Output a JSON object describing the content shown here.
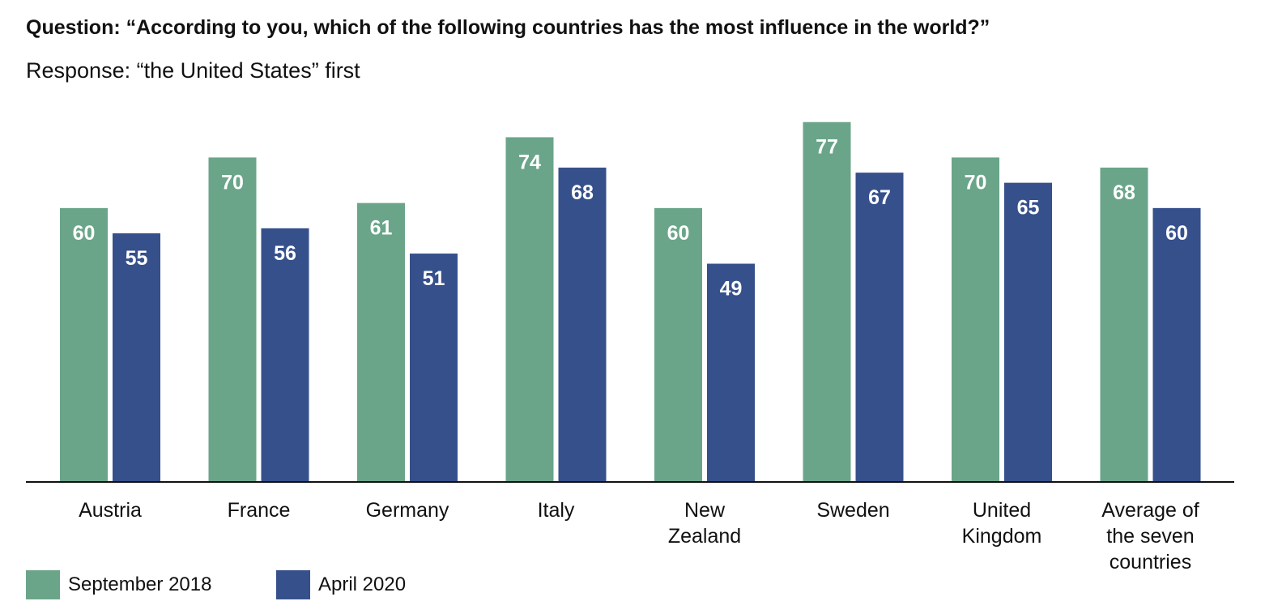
{
  "chart_data": {
    "type": "bar",
    "title": "Question: “According to you, which of the following countries has the most influence in the world?”",
    "subtitle": "Response: “the United States” first",
    "categories": [
      [
        "Austria"
      ],
      [
        "France"
      ],
      [
        "Germany"
      ],
      [
        "Italy"
      ],
      [
        "New",
        "Zealand"
      ],
      [
        "Sweden"
      ],
      [
        "United",
        "Kingdom"
      ],
      [
        "Average of",
        "the seven",
        "countries"
      ]
    ],
    "series": [
      {
        "name": "September 2018",
        "color": "#6aa589",
        "values": [
          60,
          70,
          61,
          74,
          60,
          77,
          70,
          68
        ]
      },
      {
        "name": "April 2020",
        "color": "#36508c",
        "values": [
          55,
          56,
          51,
          68,
          49,
          67,
          65,
          60
        ]
      }
    ],
    "ylim": [
      6,
      84
    ],
    "grid": false,
    "legend": "bottom-left"
  }
}
